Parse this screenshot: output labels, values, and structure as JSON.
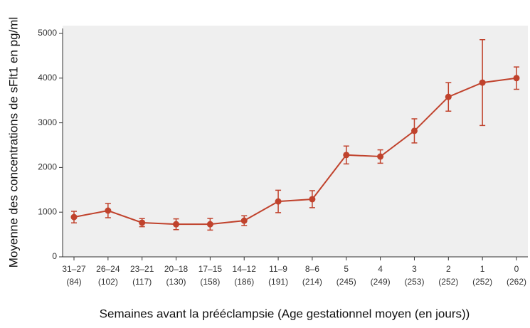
{
  "chart_data": {
    "type": "line",
    "ylabel": "Moyenne des concentrations de sFlt1 en pg/ml",
    "xlabel": "Semaines avant la prééclampsie (Age gestationnel moyen (en jours))",
    "categories": [
      "31–27",
      "26–24",
      "23–21",
      "20–18",
      "17–15",
      "14–12",
      "11–9",
      "8–6",
      "5",
      "4",
      "3",
      "2",
      "1",
      "0"
    ],
    "category_sublabels": [
      "(84)",
      "(102)",
      "(117)",
      "(130)",
      "(158)",
      "(186)",
      "(191)",
      "(214)",
      "(245)",
      "(249)",
      "(253)",
      "(252)",
      "(252)",
      "(262)"
    ],
    "series": [
      {
        "color": "#c0422c",
        "values": [
          890,
          1035,
          765,
          730,
          730,
          810,
          1240,
          1290,
          2280,
          2245,
          2820,
          3580,
          3900,
          4000
        ],
        "errors": [
          130,
          160,
          90,
          120,
          130,
          110,
          250,
          190,
          200,
          150,
          270,
          320,
          960,
          250
        ]
      }
    ],
    "ylim": [
      0,
      5000
    ],
    "yticks": [
      0,
      1000,
      2000,
      3000,
      4000,
      5000
    ],
    "grid": false
  }
}
